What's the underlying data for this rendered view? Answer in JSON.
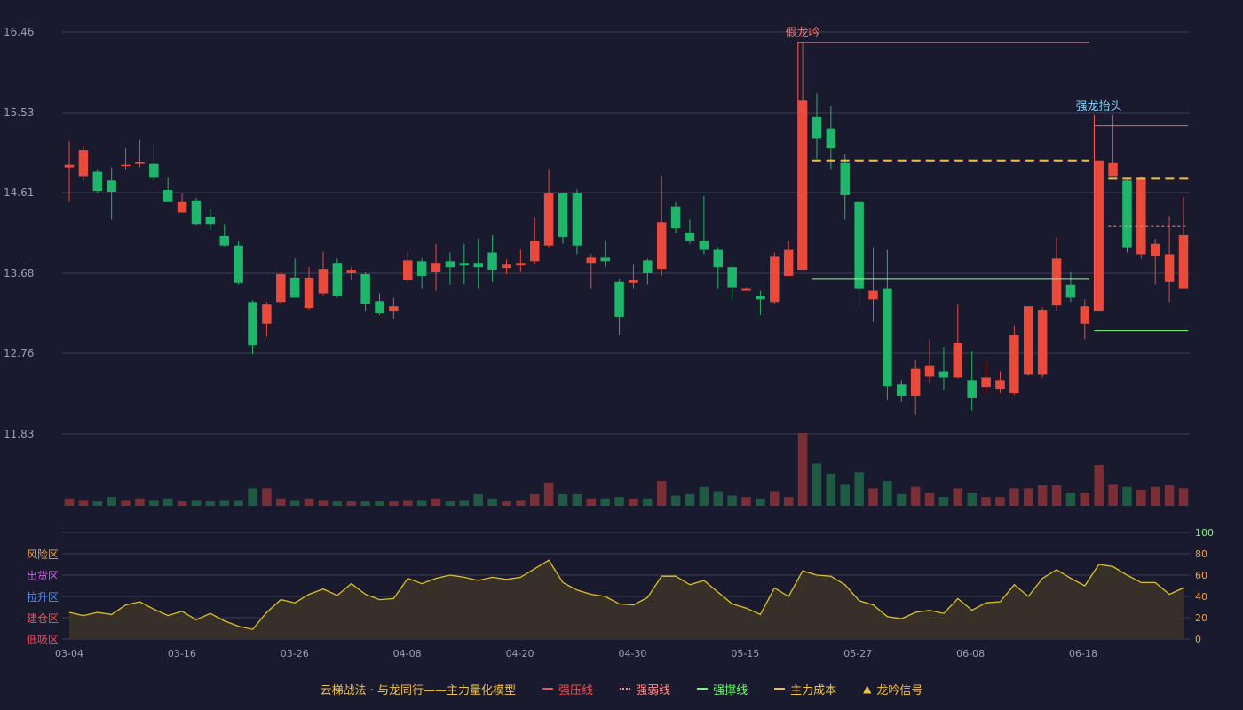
{
  "chart_data": {
    "type": "candlestick",
    "price_axis": {
      "ticks": [
        "16.46",
        "15.53",
        "14.61",
        "13.68",
        "12.76",
        "11.83"
      ],
      "min": 11.83,
      "max": 16.46
    },
    "x_axis": {
      "tick_labels": [
        "03-04",
        "03-16",
        "03-26",
        "04-08",
        "04-20",
        "04-30",
        "05-15",
        "05-27",
        "06-08",
        "06-18"
      ]
    },
    "candles": [
      [
        14.9,
        14.93,
        14.5,
        15.2
      ],
      [
        14.8,
        15.1,
        14.75,
        15.15
      ],
      [
        14.85,
        14.63,
        14.6,
        14.88
      ],
      [
        14.75,
        14.62,
        14.3,
        14.9
      ],
      [
        14.92,
        14.93,
        14.88,
        15.12
      ],
      [
        14.94,
        14.96,
        14.9,
        15.22
      ],
      [
        14.94,
        14.78,
        14.75,
        15.17
      ],
      [
        14.64,
        14.5,
        14.5,
        14.78
      ],
      [
        14.38,
        14.5,
        14.38,
        14.6
      ],
      [
        14.52,
        14.25,
        14.23,
        14.55
      ],
      [
        14.33,
        14.25,
        14.18,
        14.42
      ],
      [
        14.11,
        14.0,
        13.99,
        14.25
      ],
      [
        14.0,
        13.57,
        13.55,
        14.05
      ],
      [
        13.35,
        12.85,
        12.75,
        13.37
      ],
      [
        13.1,
        13.32,
        12.95,
        13.35
      ],
      [
        13.35,
        13.67,
        13.33,
        13.7
      ],
      [
        13.63,
        13.4,
        13.4,
        13.85
      ],
      [
        13.28,
        13.63,
        13.26,
        13.75
      ],
      [
        13.45,
        13.73,
        13.43,
        13.93
      ],
      [
        13.8,
        13.42,
        13.4,
        13.85
      ],
      [
        13.68,
        13.72,
        13.6,
        13.75
      ],
      [
        13.67,
        13.33,
        13.25,
        13.7
      ],
      [
        13.36,
        13.22,
        13.2,
        13.45
      ],
      [
        13.25,
        13.3,
        13.15,
        13.4
      ],
      [
        13.6,
        13.83,
        13.58,
        13.93
      ],
      [
        13.82,
        13.65,
        13.5,
        13.85
      ],
      [
        13.7,
        13.8,
        13.48,
        14.02
      ],
      [
        13.82,
        13.75,
        13.55,
        13.92
      ],
      [
        13.8,
        13.77,
        13.55,
        14.02
      ],
      [
        13.8,
        13.75,
        13.5,
        14.08
      ],
      [
        13.92,
        13.72,
        13.58,
        14.12
      ],
      [
        13.74,
        13.78,
        13.67,
        13.84
      ],
      [
        13.77,
        13.8,
        13.7,
        13.95
      ],
      [
        13.82,
        14.05,
        13.78,
        14.32
      ],
      [
        14.0,
        14.6,
        13.98,
        14.88
      ],
      [
        14.6,
        14.1,
        14.02,
        14.6
      ],
      [
        14.6,
        14.0,
        13.9,
        14.65
      ],
      [
        13.8,
        13.86,
        13.5,
        13.9
      ],
      [
        13.86,
        13.82,
        13.75,
        14.06
      ],
      [
        13.58,
        13.18,
        12.97,
        13.62
      ],
      [
        13.57,
        13.6,
        13.5,
        13.78
      ],
      [
        13.83,
        13.68,
        13.55,
        13.85
      ],
      [
        13.73,
        14.27,
        13.65,
        14.8
      ],
      [
        14.45,
        14.2,
        14.15,
        14.5
      ],
      [
        14.15,
        14.05,
        14.02,
        14.3
      ],
      [
        14.05,
        13.95,
        13.9,
        14.57
      ],
      [
        13.95,
        13.75,
        13.5,
        13.98
      ],
      [
        13.75,
        13.52,
        13.38,
        13.8
      ],
      [
        13.48,
        13.5,
        13.48,
        13.52
      ],
      [
        13.42,
        13.38,
        13.2,
        13.48
      ],
      [
        13.35,
        13.87,
        13.33,
        13.92
      ],
      [
        13.65,
        13.95,
        13.65,
        14.05
      ],
      [
        13.72,
        15.67,
        13.72,
        16.35
      ],
      [
        15.48,
        15.23,
        15.0,
        15.75
      ],
      [
        15.35,
        15.12,
        14.88,
        15.6
      ],
      [
        14.95,
        14.58,
        14.3,
        15.05
      ],
      [
        14.5,
        13.5,
        13.3,
        14.5
      ],
      [
        13.38,
        13.48,
        13.12,
        13.98
      ],
      [
        13.5,
        12.38,
        12.22,
        13.95
      ],
      [
        12.4,
        12.27,
        12.2,
        12.45
      ],
      [
        12.27,
        12.58,
        12.05,
        12.68
      ],
      [
        12.49,
        12.62,
        12.42,
        12.92
      ],
      [
        12.55,
        12.48,
        12.33,
        12.83
      ],
      [
        12.48,
        12.88,
        12.47,
        13.32
      ],
      [
        12.45,
        12.25,
        12.1,
        12.78
      ],
      [
        12.37,
        12.48,
        12.3,
        12.67
      ],
      [
        12.35,
        12.45,
        12.3,
        12.55
      ],
      [
        12.3,
        12.97,
        12.28,
        13.08
      ],
      [
        12.52,
        13.3,
        12.5,
        13.3
      ],
      [
        12.52,
        13.26,
        12.48,
        13.29
      ],
      [
        13.31,
        13.85,
        13.25,
        14.1
      ],
      [
        13.55,
        13.4,
        13.35,
        13.7
      ],
      [
        13.1,
        13.3,
        12.92,
        13.38
      ],
      [
        13.25,
        14.98,
        13.25,
        14.98
      ],
      [
        14.8,
        14.95,
        14.8,
        15.5
      ],
      [
        14.75,
        13.98,
        13.92,
        14.78
      ],
      [
        13.9,
        14.77,
        13.85,
        14.8
      ],
      [
        13.88,
        14.02,
        13.55,
        14.08
      ],
      [
        13.58,
        13.9,
        13.35,
        14.34
      ],
      [
        13.5,
        14.12,
        13.5,
        14.56
      ]
    ],
    "volume": [
      5,
      4,
      3,
      6,
      4,
      5,
      4,
      5,
      3,
      4,
      3,
      4,
      4,
      12,
      12,
      5,
      4,
      5,
      4,
      3,
      3,
      3,
      3,
      3,
      4,
      4,
      5,
      3,
      4,
      8,
      5,
      3,
      4,
      8,
      16,
      8,
      8,
      5,
      5,
      6,
      5,
      5,
      17,
      7,
      8,
      13,
      10,
      7,
      6,
      5,
      10,
      6,
      50,
      29,
      22,
      15,
      23,
      12,
      17,
      8,
      13,
      9,
      6,
      12,
      9,
      6,
      6,
      12,
      12,
      14,
      14,
      9,
      9,
      28,
      15,
      13,
      11,
      13,
      14,
      12
    ],
    "up_is_red": true,
    "oscillator": {
      "name": "主力量化模型",
      "range": [
        0,
        100
      ],
      "right_ticks": [
        "100",
        "80",
        "60",
        "40",
        "20",
        "0"
      ],
      "zones": [
        "风险区",
        "出货区",
        "拉升区",
        "建仓区",
        "低吸区"
      ],
      "values": [
        25,
        22,
        25,
        23,
        32,
        35,
        28,
        22,
        26,
        18,
        24,
        17,
        12,
        9,
        25,
        37,
        34,
        42,
        47,
        41,
        52,
        42,
        37,
        38,
        57,
        52,
        57,
        60,
        58,
        55,
        58,
        56,
        58,
        66,
        74,
        53,
        46,
        42,
        40,
        33,
        32,
        39,
        59,
        59,
        51,
        55,
        44,
        33,
        29,
        23,
        48,
        40,
        64,
        60,
        59,
        51,
        36,
        32,
        21,
        19,
        25,
        27,
        24,
        38,
        27,
        34,
        35,
        51,
        40,
        57,
        65,
        57,
        50,
        70,
        68,
        60,
        53,
        53,
        42,
        48
      ]
    },
    "annotations": [
      {
        "label": "假龙吟",
        "candle": 52,
        "price": 16.35,
        "color": "#ff7a7a"
      },
      {
        "label": "强龙抬头",
        "candle": 73,
        "price": 15.5,
        "color": "#7fd3ff"
      }
    ],
    "lines": [
      {
        "type": "强压线",
        "price": 16.34,
        "from": 52,
        "to": 72,
        "color": "#ff5a5a",
        "style": "solid"
      },
      {
        "type": "主力成本",
        "price": 14.98,
        "from": 53,
        "to": 72,
        "color": "#f0c040",
        "style": "dashed"
      },
      {
        "type": "强撑线",
        "price": 13.62,
        "from": 53,
        "to": 72,
        "color": "#8dff8d",
        "style": "solid"
      },
      {
        "type": "强压线",
        "price": 15.38,
        "from": 73,
        "to": 79,
        "color": "#ff5a5a",
        "style": "solid"
      },
      {
        "type": "主力成本",
        "price": 14.77,
        "from": 74,
        "to": 79,
        "color": "#f0c040",
        "style": "dashed"
      },
      {
        "type": "强弱线",
        "price": 14.22,
        "from": 74,
        "to": 79,
        "color": "#ff8a8a",
        "style": "dotted"
      },
      {
        "type": "强撑线",
        "price": 13.02,
        "from": 73,
        "to": 79,
        "color": "#8dff8d",
        "style": "solid"
      }
    ]
  },
  "legend": {
    "title": "云梯战法 · 与龙同行——主力量化模型",
    "items": [
      {
        "label": "强压线",
        "color": "#ff4d4d",
        "kind": "solid"
      },
      {
        "label": "强弱线",
        "color": "#ff8a8a",
        "kind": "dotted"
      },
      {
        "label": "强撑线",
        "color": "#6dff6d",
        "kind": "solid"
      },
      {
        "label": "主力成本",
        "color": "#f0c040",
        "kind": "dashed"
      },
      {
        "label": "龙吟信号",
        "color": "#f0c040",
        "kind": "triangle"
      }
    ]
  },
  "colors": {
    "up": "#e84a3c",
    "down": "#1fb56a",
    "grid": "#3a3d52",
    "axis_text": "#9aa0b0",
    "background": "#1a1a2e"
  }
}
